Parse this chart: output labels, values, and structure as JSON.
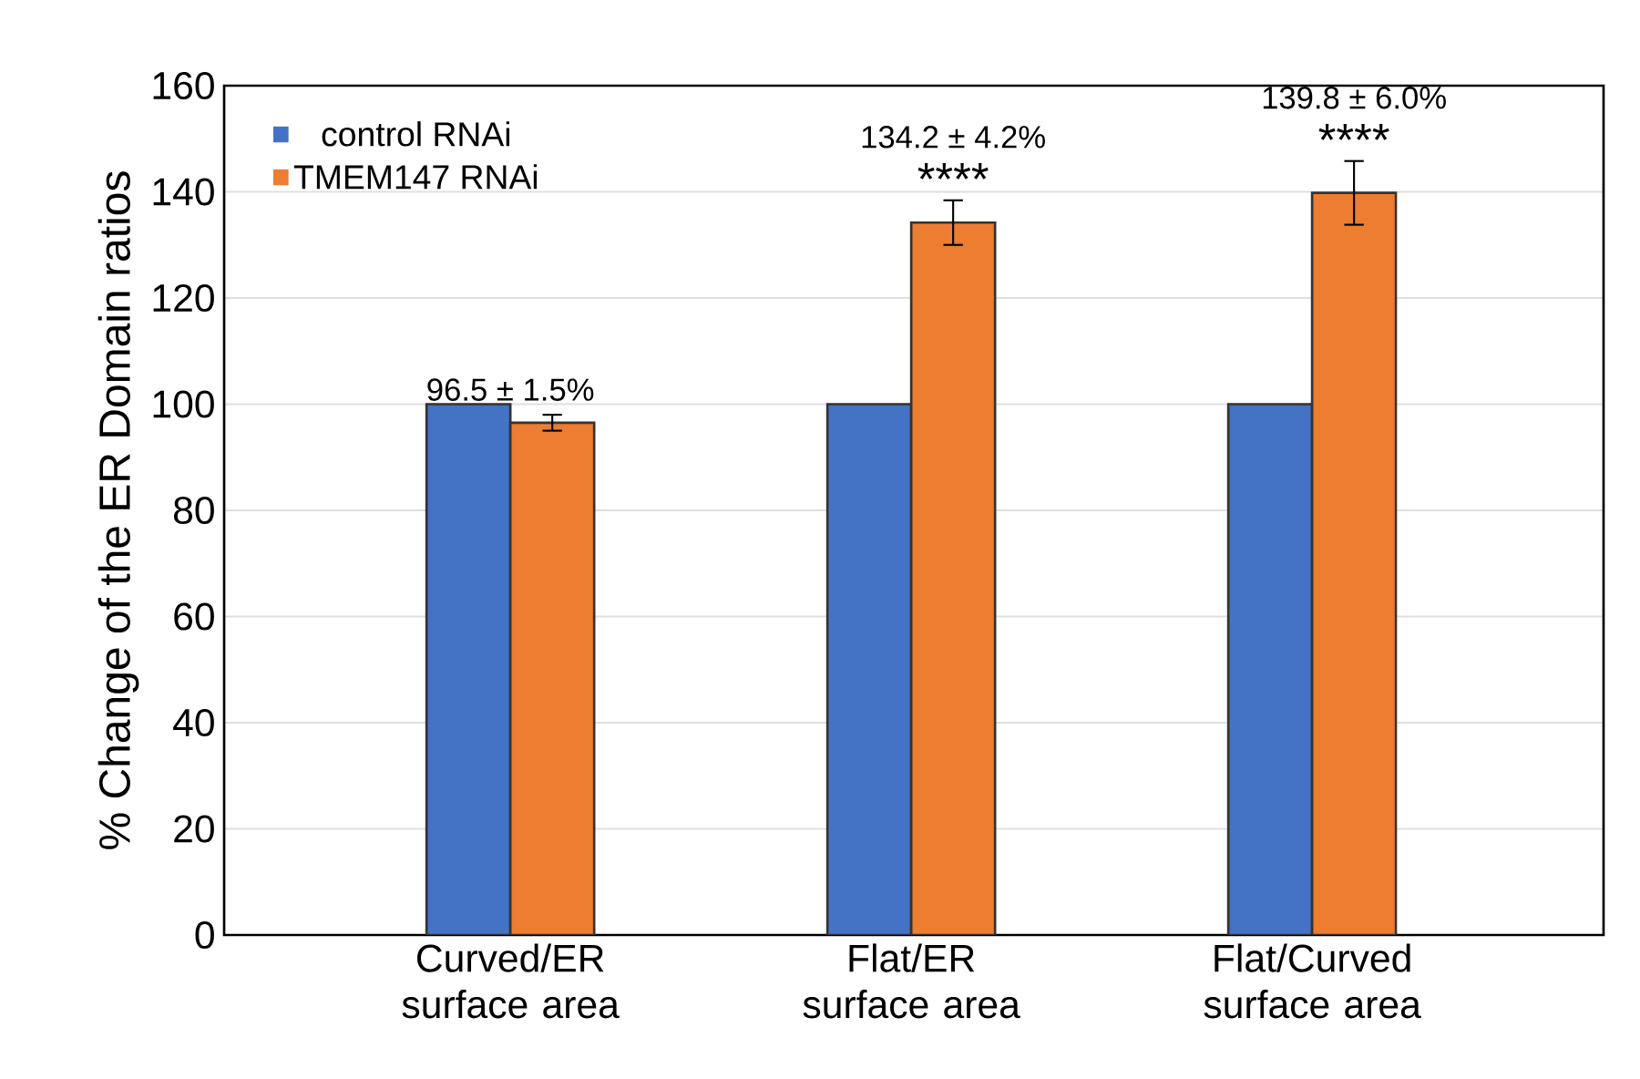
{
  "chart_data": {
    "type": "bar",
    "ylabel": "% Change of the ER Domain ratios",
    "categories": [
      "Curved/ER surface area",
      "Flat/ER surface area",
      "Flat/Curved surface area"
    ],
    "series": [
      {
        "name": "control RNAi",
        "color": "#4472c4",
        "values": [
          100,
          100,
          100
        ]
      },
      {
        "name": "TMEM147 RNAi",
        "color": "#ed7d31",
        "values": [
          96.5,
          134.2,
          139.8
        ],
        "errors": [
          1.5,
          4.2,
          6.0
        ],
        "value_labels": [
          "96.5 ± 1.5%",
          "134.2 ± 4.2%",
          "139.8 ± 6.0%"
        ]
      }
    ],
    "annotations": [
      "****",
      "****"
    ],
    "ylim": [
      0,
      160
    ],
    "yticks": [
      0,
      20,
      40,
      60,
      80,
      100,
      120,
      140,
      160
    ],
    "grid": "y",
    "legend": "top left"
  }
}
